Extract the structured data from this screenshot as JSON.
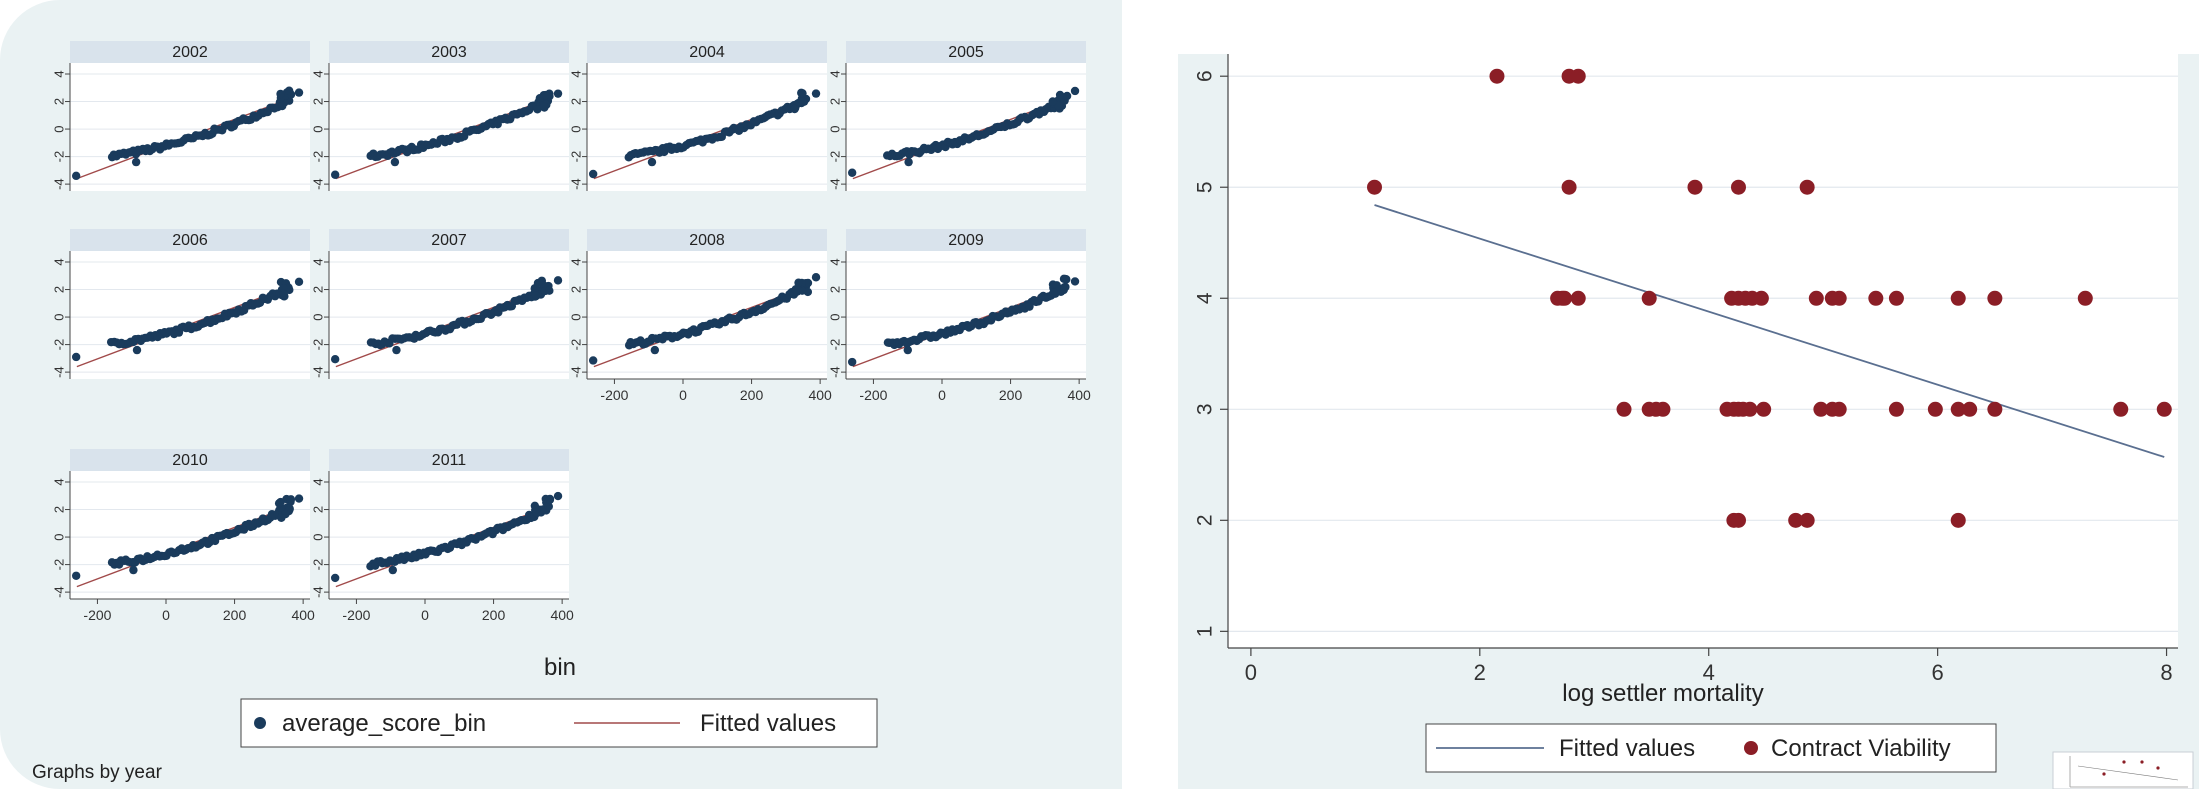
{
  "left_figure": {
    "facet_label": "Graphs by year",
    "legend": {
      "points": "average_score_bin",
      "line": "Fitted values"
    }
  },
  "right_figure": {
    "legend": {
      "line": "Fitted values",
      "points": "Contract Viability"
    }
  },
  "colors": {
    "panel_bg": "#eaf2f3",
    "facet_header": "#d9e3ec",
    "navy_points": "#1a3b5c",
    "fit_line_red": "#a14a4a",
    "fit_line_navy": "#5a6f90",
    "maroon_points": "#8b1e26"
  },
  "chart_data": [
    {
      "type": "scatter",
      "subtype": "small-multiples",
      "facet_by": "year",
      "facets": [
        "2002",
        "2003",
        "2004",
        "2005",
        "2006",
        "2007",
        "2008",
        "2009",
        "2010",
        "2011"
      ],
      "xlabel": "bin",
      "ylabel": "",
      "xlim": [
        -280,
        420
      ],
      "ylim": [
        -4.5,
        4.8
      ],
      "xticks": [
        -200,
        0,
        200,
        400
      ],
      "yticks": [
        -4,
        -2,
        0,
        2,
        4
      ],
      "grid": true,
      "legend_position": "bottom",
      "series": [
        {
          "name": "average_score_bin",
          "style": "points",
          "curve": "approx. y = -1.2 + 0.0062*x + 0.0000088*x^2 for x in [-160, 360], plus one outlier near (-260, -2.8) in each panel",
          "sample_points_2002": [
            [
              -260,
              -3.3
            ],
            [
              -160,
              -2.1
            ],
            [
              -100,
              -2.0
            ],
            [
              0,
              -1.2
            ],
            [
              100,
              -0.5
            ],
            [
              200,
              0.4
            ],
            [
              300,
              1.6
            ],
            [
              340,
              2.2
            ],
            [
              360,
              1.8
            ],
            [
              385,
              2.6
            ]
          ]
        },
        {
          "name": "Fitted values",
          "style": "line",
          "approx_line": {
            "x": [
              -260,
              360
            ],
            "y": [
              -3.6,
              2.2
            ]
          }
        }
      ]
    },
    {
      "type": "scatter",
      "xlabel": "log settler mortality",
      "ylabel": "",
      "xlim": [
        -0.2,
        8.1
      ],
      "ylim": [
        0.85,
        6.2
      ],
      "xticks": [
        0,
        2,
        4,
        6,
        8
      ],
      "yticks": [
        1,
        2,
        3,
        4,
        5,
        6
      ],
      "grid": true,
      "legend_position": "bottom",
      "series": [
        {
          "name": "Contract Viability",
          "style": "points",
          "points": [
            [
              2.15,
              6
            ],
            [
              2.78,
              6
            ],
            [
              2.86,
              6
            ],
            [
              1.08,
              5
            ],
            [
              2.78,
              5
            ],
            [
              3.88,
              5
            ],
            [
              4.26,
              5
            ],
            [
              4.86,
              5
            ],
            [
              2.68,
              4
            ],
            [
              2.72,
              4
            ],
            [
              2.74,
              4
            ],
            [
              2.86,
              4
            ],
            [
              3.48,
              4
            ],
            [
              4.2,
              4
            ],
            [
              4.26,
              4
            ],
            [
              4.32,
              4
            ],
            [
              4.38,
              4
            ],
            [
              4.46,
              4
            ],
            [
              4.94,
              4
            ],
            [
              5.08,
              4
            ],
            [
              5.14,
              4
            ],
            [
              5.46,
              4
            ],
            [
              5.64,
              4
            ],
            [
              6.18,
              4
            ],
            [
              6.5,
              4
            ],
            [
              7.29,
              4
            ],
            [
              3.26,
              3
            ],
            [
              3.48,
              3
            ],
            [
              3.54,
              3
            ],
            [
              3.6,
              3
            ],
            [
              4.16,
              3
            ],
            [
              4.22,
              3
            ],
            [
              4.26,
              3
            ],
            [
              4.3,
              3
            ],
            [
              4.36,
              3
            ],
            [
              4.48,
              3
            ],
            [
              4.98,
              3
            ],
            [
              5.08,
              3
            ],
            [
              5.14,
              3
            ],
            [
              5.64,
              3
            ],
            [
              5.98,
              3
            ],
            [
              6.18,
              3
            ],
            [
              6.28,
              3
            ],
            [
              6.5,
              3
            ],
            [
              7.6,
              3
            ],
            [
              7.98,
              3
            ],
            [
              4.22,
              2
            ],
            [
              4.26,
              2
            ],
            [
              4.76,
              2
            ],
            [
              4.86,
              2
            ],
            [
              6.18,
              2
            ]
          ]
        },
        {
          "name": "Fitted values",
          "style": "line",
          "line": {
            "x": [
              1.08,
              7.98
            ],
            "y": [
              4.84,
              2.57
            ]
          }
        }
      ]
    }
  ]
}
